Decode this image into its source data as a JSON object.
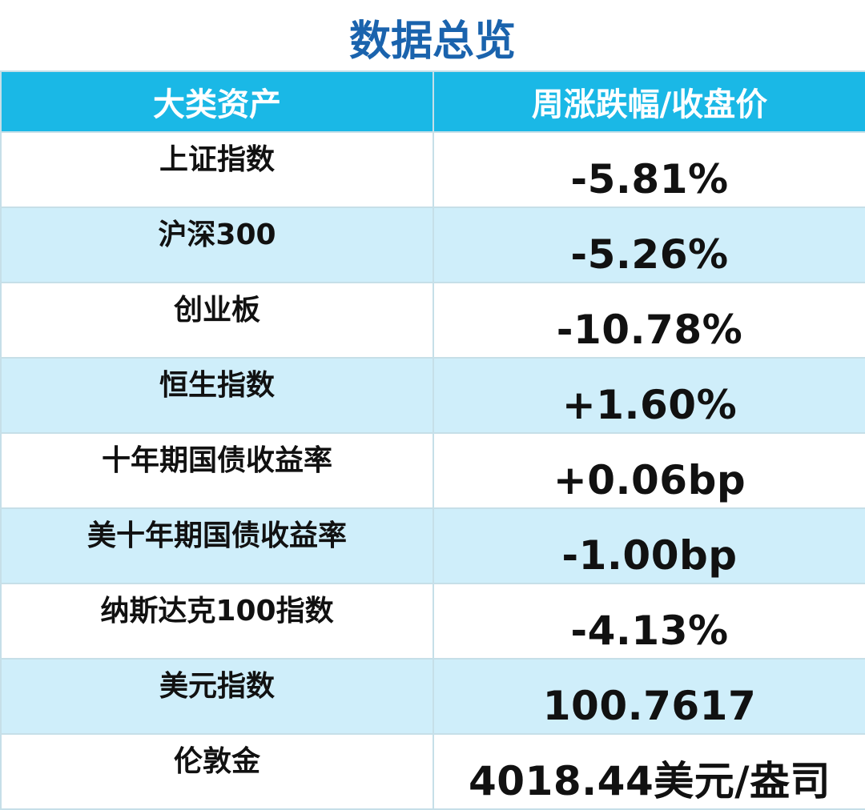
{
  "title": "数据总览",
  "table": {
    "headers": [
      "大类资产",
      "周涨跌幅/收盘价"
    ],
    "rows": [
      {
        "asset": "上证指数",
        "value": "-5.81%"
      },
      {
        "asset": "沪深300",
        "value": "-5.26%"
      },
      {
        "asset": "创业板",
        "value": "-10.78%"
      },
      {
        "asset": "恒生指数",
        "value": "+1.60%"
      },
      {
        "asset": "十年期国债收益率",
        "value": "+0.06bp"
      },
      {
        "asset": "美十年期国债收益率",
        "value": "-1.00bp"
      },
      {
        "asset": "纳斯达克100指数",
        "value": "-4.13%"
      },
      {
        "asset": "美元指数",
        "value": "100.7617"
      },
      {
        "asset": "伦敦金",
        "value": "4018.44美元/盎司"
      }
    ]
  },
  "colors": {
    "title": "#1a63ad",
    "header_bg": "#1ab8e6",
    "stripe_bg": "#cfeefa"
  }
}
